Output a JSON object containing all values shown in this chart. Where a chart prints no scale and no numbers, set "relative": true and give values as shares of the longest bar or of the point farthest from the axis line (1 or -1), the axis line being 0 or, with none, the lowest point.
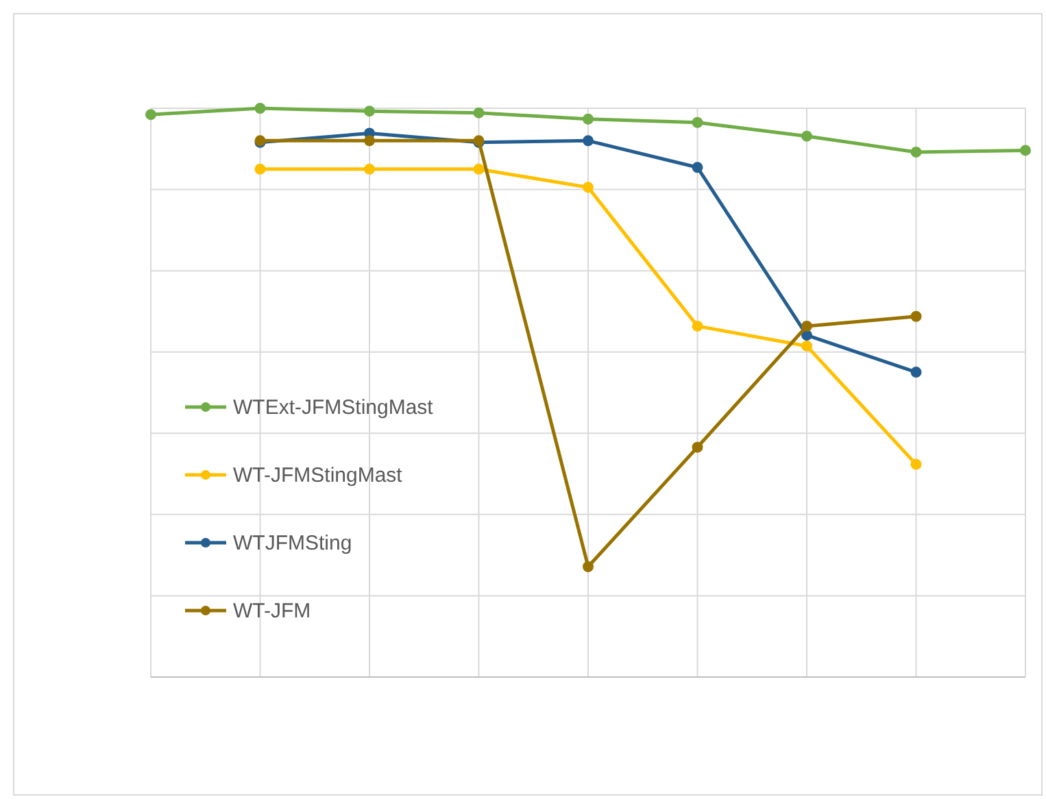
{
  "chart_data": {
    "type": "line",
    "relative": true,
    "categories": [
      null,
      null,
      null,
      null,
      null,
      null,
      null,
      null,
      null
    ],
    "series": [
      {
        "name": "WTExt-JFMStingMast",
        "color": "#70ad47",
        "values": [
          0.989,
          1,
          0.995,
          0.992,
          0.981,
          0.975,
          0.951,
          0.923,
          0.926
        ]
      },
      {
        "name": "WT-JFMStingMast",
        "color": "#ffc000",
        "values": [
          null,
          0.893,
          0.893,
          0.893,
          0.861,
          0.617,
          0.582,
          0.374,
          null
        ]
      },
      {
        "name": "WTJFMSting",
        "color": "#255e91",
        "values": [
          null,
          0.94,
          0.956,
          0.94,
          0.943,
          0.896,
          0.601,
          0.536,
          null
        ]
      },
      {
        "name": "WT-JFM",
        "color": "#997300",
        "values": [
          null,
          0.943,
          0.943,
          0.943,
          0.194,
          0.404,
          0.617,
          0.634,
          null
        ]
      }
    ],
    "grid": true,
    "legend": "left",
    "marker": "circle",
    "line_style": "solid"
  }
}
